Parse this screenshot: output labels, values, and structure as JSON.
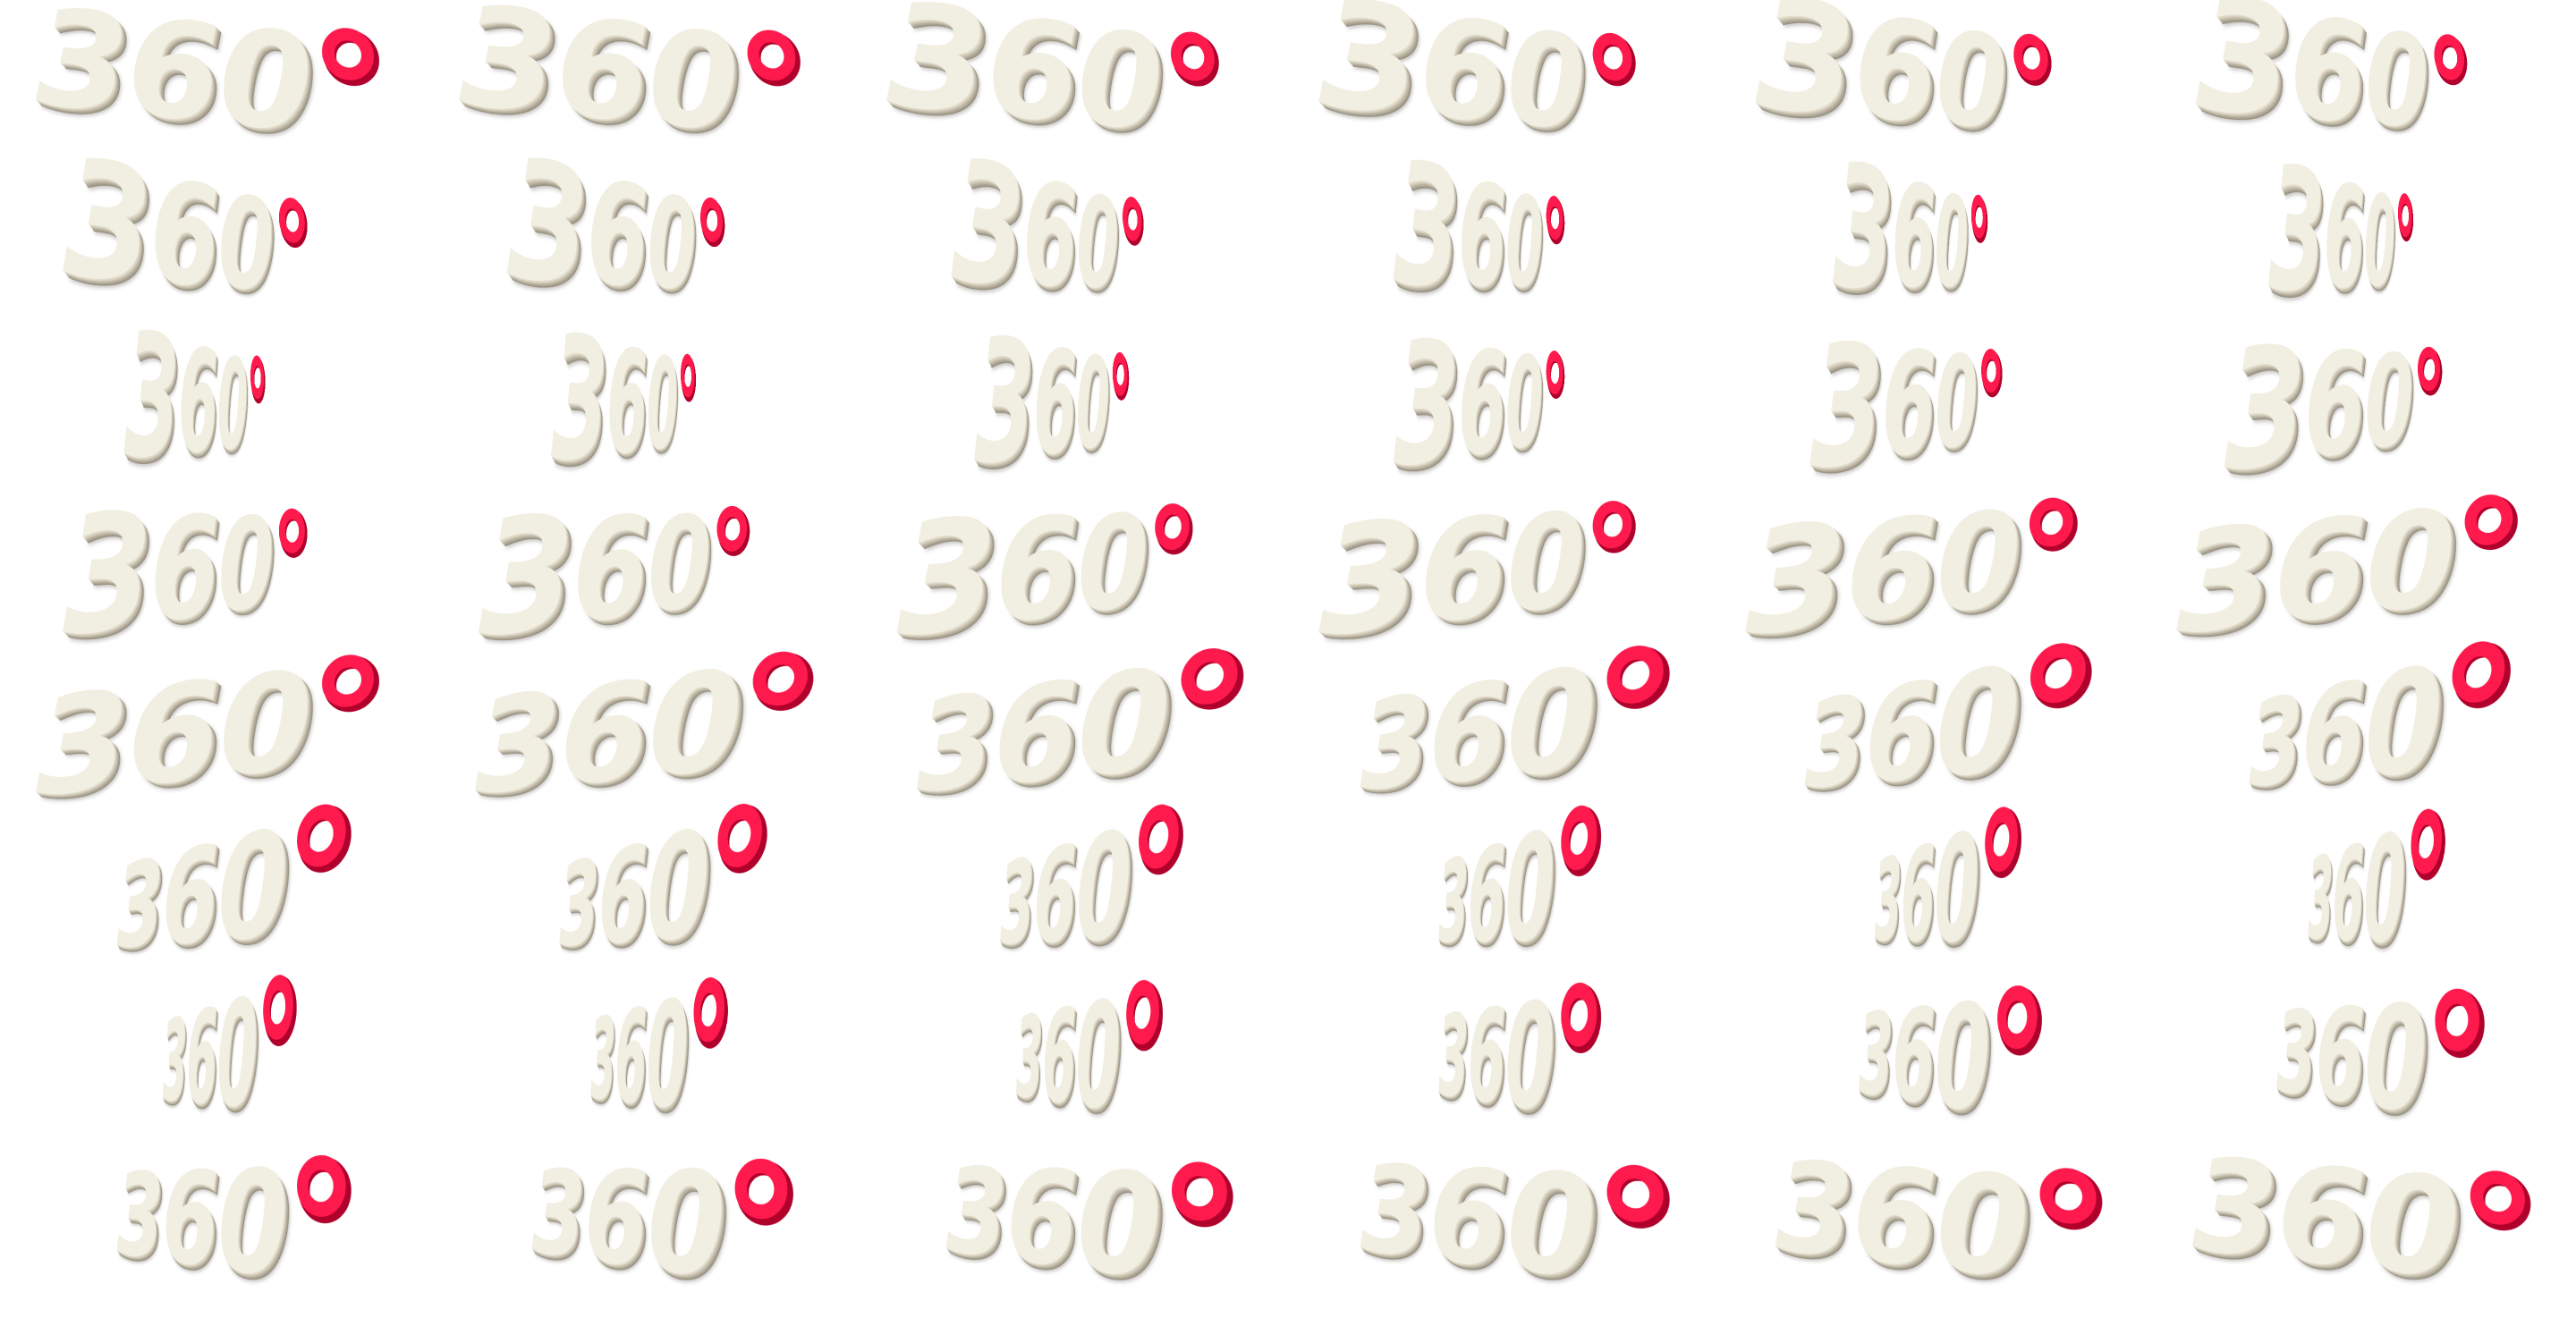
{
  "image": {
    "kind": "3D logo animation sprite sheet",
    "grid": {
      "columns": 6,
      "rows": 8
    },
    "background_color": "#ffffff"
  },
  "logo": {
    "digits": "360",
    "degree_symbol": "°",
    "digit_color": "#f1eee2",
    "digit_shadow_color": "#a8a191",
    "degree_color": "#ff1a4d",
    "degree_dark_color": "#b0002c"
  }
}
